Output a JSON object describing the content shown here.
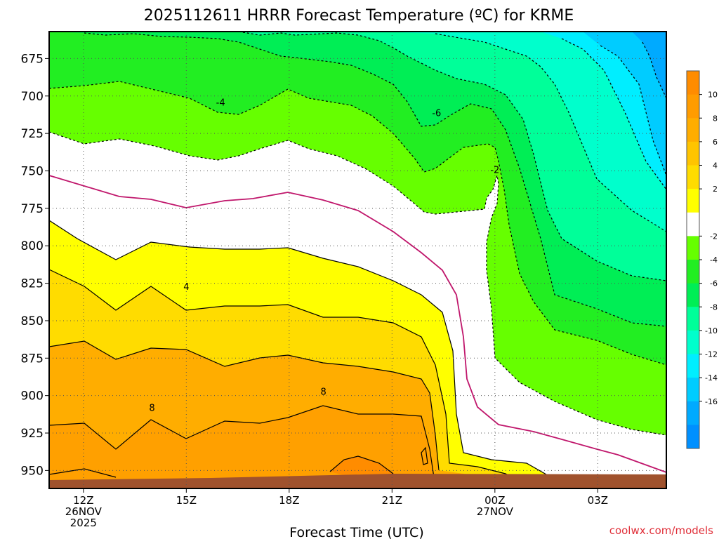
{
  "title": "2025112611 HRRR Forecast Temperature (ºC) for KRME",
  "credit": "coolwx.com/models",
  "chart_data": {
    "type": "heatmap",
    "title": "2025112611 HRRR Forecast Temperature (ºC) for KRME",
    "xlabel": "Forecast Time (UTC)",
    "ylabel": "",
    "x_range_hours": [
      11,
      29
    ],
    "y_range_hPa": [
      962,
      657
    ],
    "y_ticks": [
      675,
      700,
      725,
      750,
      775,
      800,
      825,
      850,
      875,
      900,
      925,
      950
    ],
    "x_ticks": [
      {
        "hour": 12,
        "lines": [
          "12Z",
          "26NOV",
          "2025"
        ]
      },
      {
        "hour": 15,
        "lines": [
          "15Z"
        ]
      },
      {
        "hour": 18,
        "lines": [
          "18Z"
        ]
      },
      {
        "hour": 21,
        "lines": [
          "21Z"
        ]
      },
      {
        "hour": 24,
        "lines": [
          "00Z",
          "27NOV"
        ]
      },
      {
        "hour": 27,
        "lines": [
          "03Z"
        ]
      }
    ],
    "grid": true,
    "colorbar": {
      "labels": [
        "10",
        "8",
        "6",
        "4",
        "2",
        "-2",
        "-4",
        "-6",
        "-8",
        "-10",
        "-12",
        "-14",
        "-16"
      ],
      "colors": [
        "#ff8c00",
        "#ff9c00",
        "#ffad00",
        "#ffc400",
        "#ffdc00",
        "#ffff00",
        "#ffffff",
        "#66ff00",
        "#22ee22",
        "#00ee55",
        "#00ff99",
        "#00ffcc",
        "#00eeff",
        "#00ccff",
        "#00aaff",
        "#0090ff"
      ]
    },
    "contour_labels": [
      {
        "text": "-4",
        "hour": 16.0,
        "p": 704
      },
      {
        "text": "-6",
        "hour": 22.3,
        "p": 711
      },
      {
        "text": "-2",
        "hour": 24.0,
        "p": 749
      },
      {
        "text": "4",
        "hour": 15.0,
        "p": 827
      },
      {
        "text": "8",
        "hour": 14.0,
        "p": 908
      },
      {
        "text": "8",
        "hour": 19.0,
        "p": 897
      }
    ]
  }
}
